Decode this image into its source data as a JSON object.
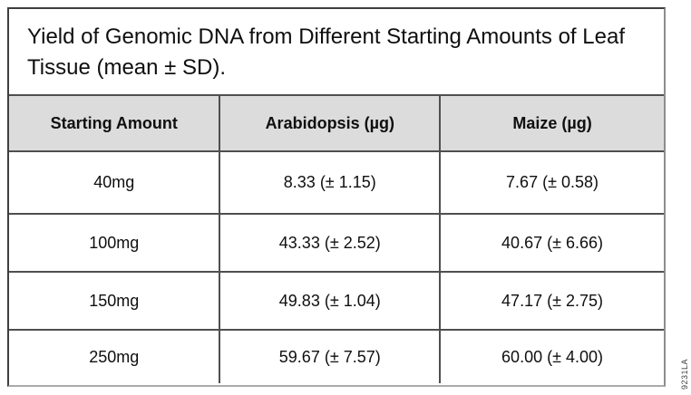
{
  "figure": {
    "title": "Yield of Genomic DNA from Different Starting Amounts of Leaf Tissue (mean ± SD).",
    "side_label": "9231LA"
  },
  "table": {
    "columns": [
      "Starting Amount",
      "Arabidopsis (µg)",
      "Maize (µg)"
    ],
    "rows": [
      [
        "40mg",
        "8.33 (± 1.15)",
        "7.67 (± 0.58)"
      ],
      [
        "100mg",
        "43.33 (± 2.52)",
        "40.67 (± 6.66)"
      ],
      [
        "150mg",
        "49.83 (± 1.04)",
        "47.17 (± 2.75)"
      ],
      [
        "250mg",
        "59.67 (± 7.57)",
        "60.00 (± 4.00)"
      ]
    ]
  },
  "colors": {
    "header_bg": "#dcdcdc",
    "grid_border": "#4f4f4f",
    "text": "#0f0f0f"
  }
}
